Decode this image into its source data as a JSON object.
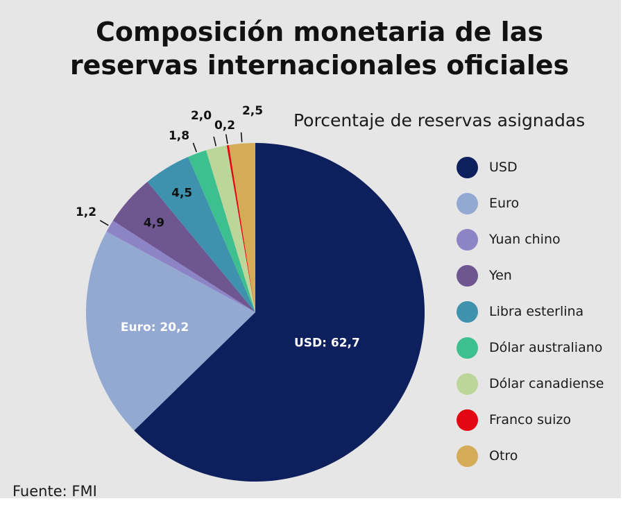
{
  "title_line1": "Composición monetaria de las",
  "title_line2": "reservas internacionales oficiales",
  "subtitle": "Porcentaje de reservas asignadas",
  "source": "Fuente: FMI",
  "chart_data": {
    "type": "pie",
    "title": "Composición monetaria de las reservas internacionales oficiales",
    "subtitle": "Porcentaje de reservas asignadas",
    "legend_position": "right",
    "categories": [
      "USD",
      "Euro",
      "Yuan chino",
      "Yen",
      "Libra esterlina",
      "Dólar australiano",
      "Dólar canadiense",
      "Franco suizo",
      "Otro"
    ],
    "values": [
      62.7,
      20.2,
      1.2,
      4.9,
      4.5,
      1.8,
      2.0,
      0.2,
      2.5
    ],
    "value_labels": [
      "USD: 62,7",
      "Euro: 20,2",
      "1,2",
      "4,9",
      "4,5",
      "1,8",
      "2,0",
      "0,2",
      "2,5"
    ],
    "colors": [
      "#0d1f5c",
      "#93a9d2",
      "#8c84c5",
      "#6e5690",
      "#3f92ad",
      "#3dbf8f",
      "#bcd69a",
      "#e30613",
      "#d4ac57"
    ],
    "label_colors": [
      "#ffffff",
      "#ffffff",
      "#111111",
      "#111111",
      "#111111",
      "#111111",
      "#111111",
      "#111111",
      "#111111"
    ]
  }
}
